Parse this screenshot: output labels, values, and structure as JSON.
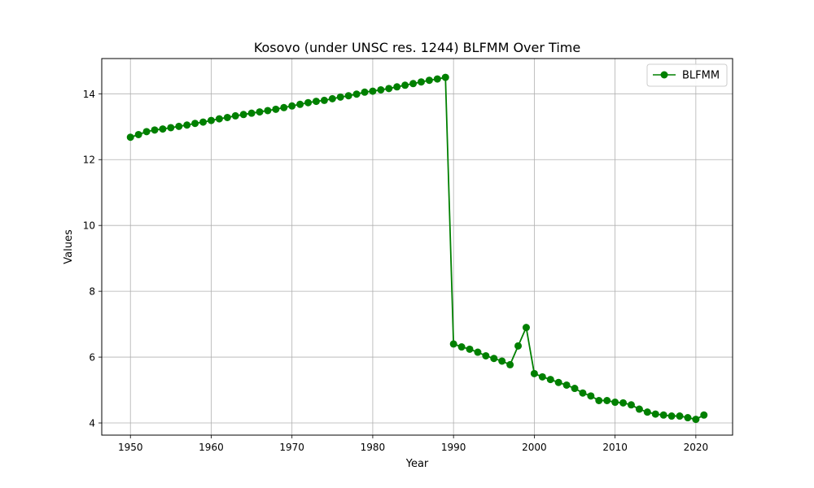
{
  "chart_data": {
    "type": "line",
    "title": "Kosovo (under UNSC res. 1244) BLFMM Over Time",
    "xlabel": "Year",
    "ylabel": "Values",
    "xlim": [
      1946.45,
      2024.55
    ],
    "ylim": [
      3.63,
      15.07
    ],
    "x_ticks": [
      1950,
      1960,
      1970,
      1980,
      1990,
      2000,
      2010,
      2020
    ],
    "y_ticks": [
      4,
      6,
      8,
      10,
      12,
      14
    ],
    "grid": true,
    "legend_position": "top-right",
    "series": [
      {
        "name": "BLFMM",
        "color": "#008000",
        "marker": "circle",
        "x": [
          1950,
          1951,
          1952,
          1953,
          1954,
          1955,
          1956,
          1957,
          1958,
          1959,
          1960,
          1961,
          1962,
          1963,
          1964,
          1965,
          1966,
          1967,
          1968,
          1969,
          1970,
          1971,
          1972,
          1973,
          1974,
          1975,
          1976,
          1977,
          1978,
          1979,
          1980,
          1981,
          1982,
          1983,
          1984,
          1985,
          1986,
          1987,
          1988,
          1989,
          1990,
          1991,
          1992,
          1993,
          1994,
          1995,
          1996,
          1997,
          1998,
          1999,
          2000,
          2001,
          2002,
          2003,
          2004,
          2005,
          2006,
          2007,
          2008,
          2009,
          2010,
          2011,
          2012,
          2013,
          2014,
          2015,
          2016,
          2017,
          2018,
          2019,
          2020,
          2021
        ],
        "values": [
          12.68,
          12.76,
          12.85,
          12.9,
          12.93,
          12.97,
          13.01,
          13.05,
          13.1,
          13.14,
          13.19,
          13.24,
          13.28,
          13.33,
          13.37,
          13.41,
          13.45,
          13.49,
          13.53,
          13.58,
          13.63,
          13.68,
          13.73,
          13.77,
          13.8,
          13.85,
          13.9,
          13.94,
          13.99,
          14.05,
          14.08,
          14.12,
          14.16,
          14.21,
          14.26,
          14.31,
          14.36,
          14.41,
          14.45,
          14.5,
          6.4,
          6.31,
          6.24,
          6.15,
          6.04,
          5.96,
          5.88,
          5.77,
          6.34,
          6.9,
          5.5,
          5.4,
          5.32,
          5.23,
          5.15,
          5.05,
          4.91,
          4.82,
          4.68,
          4.68,
          4.63,
          4.61,
          4.55,
          4.42,
          4.33,
          4.27,
          4.24,
          4.21,
          4.21,
          4.16,
          4.11,
          4.24
        ]
      }
    ]
  }
}
